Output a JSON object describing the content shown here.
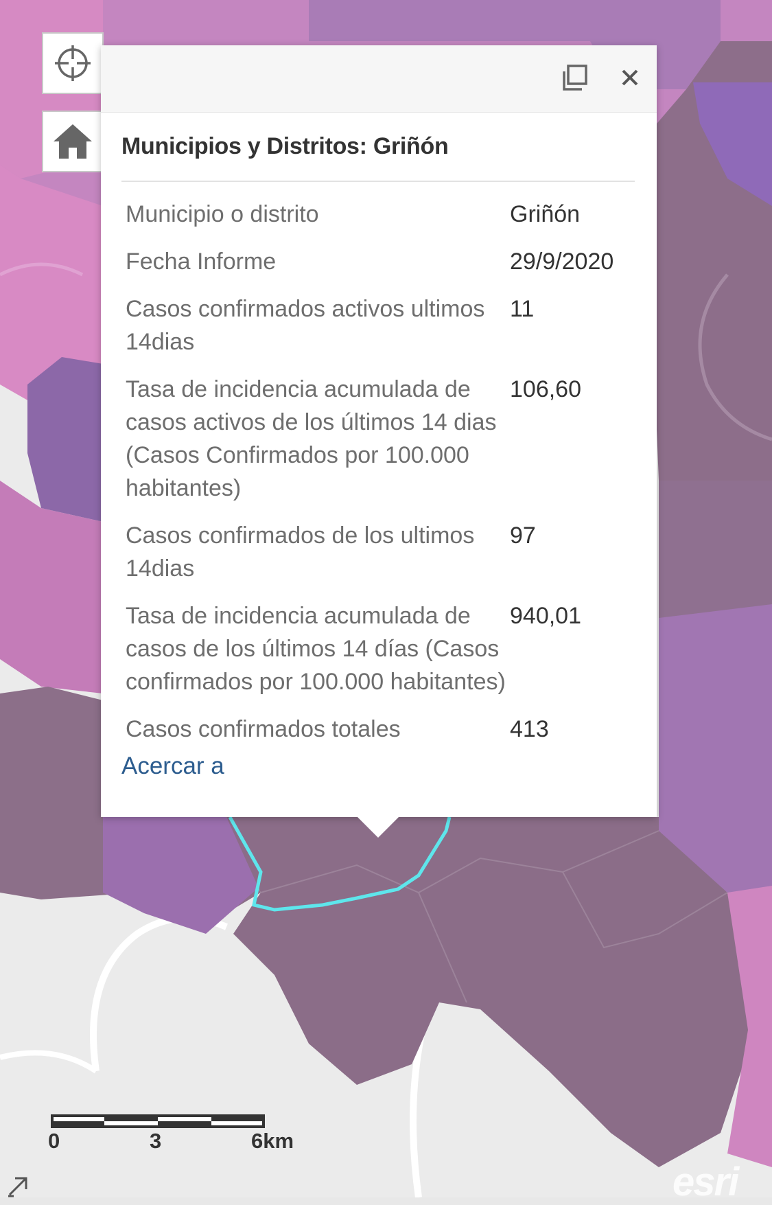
{
  "map": {
    "colors": {
      "basemap": "#ebebeb",
      "dark_region": "#8a6c86",
      "purple_region": "#9b6fae",
      "light_purple_region": "#b48ac0",
      "pink_region": "#d684bd",
      "selected_outline": "#5ee6ec"
    }
  },
  "controls": {
    "locate_icon": "locate-crosshair-icon",
    "home_icon": "home-icon"
  },
  "popup": {
    "title": "Municipios y Distritos: Griñón",
    "maximize_icon": "maximize-icon",
    "close_icon": "close-icon",
    "rows": [
      {
        "label": "Municipio o distrito",
        "value": "Griñón"
      },
      {
        "label": "Fecha Informe",
        "value": "29/9/2020"
      },
      {
        "label": "Casos confirmados activos ultimos 14dias",
        "value": "11"
      },
      {
        "label": "Tasa de incidencia acumulada de casos activos de los últimos 14 dias (Casos Confirmados por 100.000 habitantes)",
        "value": "106,60"
      },
      {
        "label": "Casos confirmados de los ultimos 14dias",
        "value": "97"
      },
      {
        "label": "Tasa de incidencia acumulada de casos de los últimos 14 días (Casos confirmados por 100.000 habitantes)",
        "value": "940,01"
      },
      {
        "label": "Casos confirmados totales",
        "value": "413"
      }
    ],
    "zoom_link": "Acercar a"
  },
  "scalebar": {
    "labels": [
      "0",
      "3",
      "6km"
    ]
  },
  "attribution": "esri"
}
